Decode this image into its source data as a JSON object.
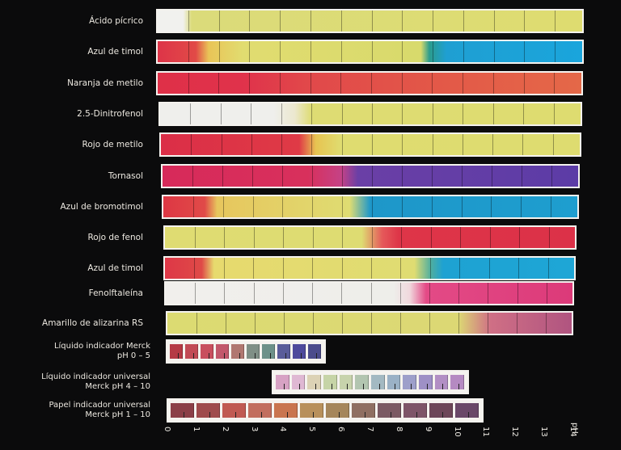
{
  "indicators": [
    {
      "name": "Ácido pícrico",
      "top": 11,
      "gradient": "linear-gradient(90deg,#f1f1ee 0%,#f1f1ee 6%,#dbdb7a 8%,#dedc70 100%)"
    },
    {
      "name": "Azul de timol",
      "top": 49,
      "gradient": "linear-gradient(90deg,#de3448 0%,#e14a47 9%,#e9c457 12%,#e1dc70 20%,#d8da6c 62%,#2b9c8d 64%,#1f9fd2 68%,#1aa5dc 100%)"
    },
    {
      "name": "Naranja de metilo",
      "top": 88,
      "gradient": "linear-gradient(90deg,#df3048 0%,#e0324b 20%,#e1484a 35%,#e35a48 70%,#e46848 100%)"
    },
    {
      "name": "2.5-Dinitrofenol",
      "top": 126,
      "gradient": "linear-gradient(90deg,#efefec 0%,#efefec 27%,#ece8cf 32%,#dedc73 36%,#dedc70 100%)"
    },
    {
      "name": "Rojo de metilo",
      "top": 164,
      "gradient": "linear-gradient(90deg,#db2e47 0%,#df3a46 33%,#e7c451 37%,#dfdc70 43%,#dedc70 100%)"
    },
    {
      "name": "Tornasol",
      "top": 203,
      "gradient": "linear-gradient(90deg,#d72a5a 0%,#d8305c 35%,#c54286 43%,#6a3fa6 47%,#5c3ca6 100%)"
    },
    {
      "name": "Azul de bromotimol",
      "top": 241,
      "gradient": "linear-gradient(90deg,#de3744 0%,#e04a48 10%,#e7c65d 13%,#dfdc72 45%,#1e97c9 50%,#1e9ecf 100%)"
    },
    {
      "name": "Rojo de fenol",
      "top": 279,
      "gradient": "linear-gradient(90deg,#dfdc72 0%,#dedc72 48%,#e5595a 53%,#de3548 57%,#dc3148 100%)"
    },
    {
      "name": "Azul de timol",
      "top": 317,
      "gradient": "linear-gradient(90deg,#de3747 0%,#df4a47 9%,#e7da6e 12%,#dfdc72 61%,#4faea0 65%,#1ea2d2 68%,#1ea6d6 100%)"
    },
    {
      "name": "Fenolftaleína",
      "top": 348,
      "gradient": "linear-gradient(90deg,#f1efec 0%,#eeeeea 56%,#f0d8dd 60%,#e34a86 64%,#dc3a79 100%)"
    },
    {
      "name": "Amarillo de alizarina RS",
      "top": 385,
      "gradient": "linear-gradient(90deg,#dcdb72 0%,#dcd874 72%,#cf6f85 80%,#b05480 100%)"
    }
  ],
  "merck": [
    {
      "line1": "Líquido indicador Merck",
      "line2": "pH 0 – 5",
      "top": 420,
      "swatches": [
        "#b53a45",
        "#c24b56",
        "#c84f5e",
        "#c2586b",
        "#b07770",
        "#7f8f86",
        "#6d9189",
        "#5a5d9a",
        "#4e4a9c",
        "#4c4c8c"
      ]
    },
    {
      "line1": "Líquido indicador universal",
      "line2": "Merck pH 4 – 10",
      "top": 458,
      "swatches": [
        "#d7a2c4",
        "#dfb8d3",
        "#dcd2b5",
        "#c6d4a7",
        "#c7d3ac",
        "#b2c5b0",
        "#a3b9c2",
        "#9ab1c6",
        "#9d9fca",
        "#9e90c6",
        "#b28fc4",
        "#b58ac2"
      ]
    },
    {
      "line1": "Papel indicador universal",
      "line2": "Merck pH 1 – 10",
      "top": 493,
      "swatches": [
        "#8b3f47",
        "#9f4b4c",
        "#c05a52",
        "#c26e5e",
        "#c9754f",
        "#b8905b",
        "#a5865b",
        "#8f6f62",
        "#7b5a63",
        "#7e5568",
        "#6d4658",
        "#6a4868"
      ]
    }
  ],
  "axis": {
    "numbers": [
      "0",
      "1",
      "2",
      "3",
      "4",
      "5",
      "6",
      "7",
      "8",
      "9",
      "10",
      "11",
      "12",
      "13",
      "14"
    ],
    "unit": "pH"
  }
}
